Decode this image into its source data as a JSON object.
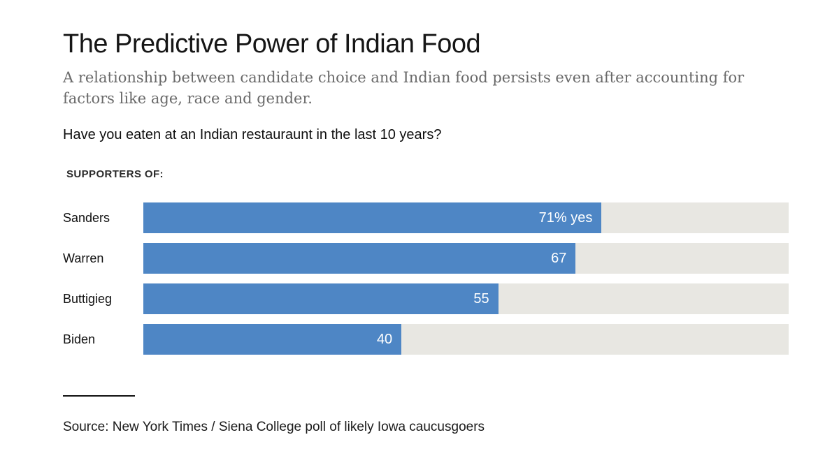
{
  "header": {
    "title": "The Predictive Power of Indian Food",
    "subtitle": "A relationship between candidate choice and Indian food persists even after accounting for factors like age, race and gender.",
    "subtitle_lines": [
      "A relationship between candidate choice and Indian food persists even after accounting for",
      "factors like age, race and gender."
    ],
    "question": "Have you eaten at an Indian restauraunt in the last 10 years?",
    "group_label": "SUPPORTERS OF:"
  },
  "chart_data": {
    "type": "bar",
    "orientation": "horizontal",
    "title": "Have you eaten at an Indian restauraunt in the last 10 years?",
    "categories": [
      "Sanders",
      "Warren",
      "Buttigieg",
      "Biden"
    ],
    "values": [
      71,
      67,
      55,
      40
    ],
    "value_labels": [
      "71% yes",
      "67",
      "55",
      "40"
    ],
    "unit": "% yes",
    "xlim": [
      0,
      100
    ],
    "grid": false,
    "legend": "none",
    "bar_color": "#4e86c5",
    "track_color": "#e8e7e2",
    "value_label_color": "#ffffff"
  },
  "footer": {
    "source": "Source: New York Times / Siena College poll of likely Iowa caucusgoers"
  },
  "colors": {
    "background": "#ffffff",
    "title_text": "#161616",
    "subtitle_text": "#696969",
    "bar_blue": "#4e86c5",
    "track_gray": "#e8e7e2"
  }
}
